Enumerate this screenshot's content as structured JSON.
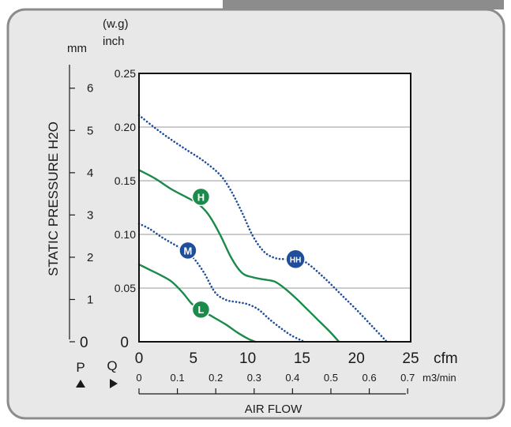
{
  "chart_data": {
    "type": "line",
    "xlabel": "AIR FLOW",
    "ylabel": "STATIC PRESSURE H2O",
    "x_unit": "cfm",
    "x_unit_secondary": "m3/min",
    "y_unit_top": "(w.g)",
    "y_unit": "inch",
    "y_unit_secondary": "mm",
    "xlim": [
      0,
      25
    ],
    "ylim": [
      0,
      0.25
    ],
    "x_ticks": [
      "0",
      "5",
      "10",
      "15",
      "20",
      "25"
    ],
    "x_ticks_secondary": [
      "0",
      "0.1",
      "0.2",
      "0.3",
      "0.4",
      "0.5",
      "0.6",
      "0.7"
    ],
    "y_ticks": [
      "0",
      "0.05",
      "0.10",
      "0.15",
      "0.20",
      "0.25"
    ],
    "y_ticks_secondary": [
      "0",
      "1",
      "2",
      "3",
      "4",
      "5",
      "6"
    ],
    "p_label": "P",
    "q_label": "Q",
    "grid": "horizontal",
    "series": [
      {
        "name": "HH",
        "style": "dotted",
        "color": "#1f4e9a",
        "x": [
          0,
          1.5,
          3,
          4.5,
          6,
          7.5,
          8.5,
          9.5,
          10.5,
          11.5,
          12.5,
          13.5,
          14.5,
          15.5,
          17,
          18.5,
          20,
          21.5,
          22.8
        ],
        "y": [
          0.211,
          0.199,
          0.188,
          0.178,
          0.168,
          0.155,
          0.14,
          0.12,
          0.098,
          0.084,
          0.078,
          0.077,
          0.077,
          0.073,
          0.06,
          0.045,
          0.03,
          0.014,
          0.0
        ]
      },
      {
        "name": "H",
        "style": "solid",
        "color": "#1b8a4a",
        "x": [
          0,
          1.5,
          3,
          4.5,
          5.5,
          6.5,
          7.5,
          8.5,
          9.5,
          10.5,
          11.5,
          12.5,
          13.5,
          14.5,
          15.5,
          16.5,
          17.5,
          18.4
        ],
        "y": [
          0.16,
          0.152,
          0.142,
          0.134,
          0.128,
          0.117,
          0.099,
          0.078,
          0.064,
          0.06,
          0.058,
          0.056,
          0.049,
          0.04,
          0.03,
          0.02,
          0.01,
          0.0
        ]
      },
      {
        "name": "M",
        "style": "dotted",
        "color": "#1f4e9a",
        "x": [
          0,
          1,
          2,
          3,
          4,
          5,
          6,
          7,
          8,
          9,
          10,
          11,
          12,
          13,
          14,
          15.2
        ],
        "y": [
          0.11,
          0.105,
          0.098,
          0.092,
          0.086,
          0.078,
          0.064,
          0.046,
          0.039,
          0.037,
          0.035,
          0.03,
          0.021,
          0.013,
          0.006,
          0.0
        ]
      },
      {
        "name": "L",
        "style": "solid",
        "color": "#1b8a4a",
        "x": [
          0,
          1,
          2,
          3,
          4,
          4.8,
          5.5,
          6.3,
          7,
          8,
          9,
          10,
          10.7
        ],
        "y": [
          0.072,
          0.067,
          0.062,
          0.056,
          0.046,
          0.036,
          0.03,
          0.026,
          0.022,
          0.016,
          0.009,
          0.003,
          0.0
        ]
      }
    ],
    "markers": [
      {
        "label": "HH",
        "x": 14.4,
        "y": 0.077,
        "color": "#1f4e9a"
      },
      {
        "label": "H",
        "x": 5.7,
        "y": 0.135,
        "color": "#1b8a4a"
      },
      {
        "label": "M",
        "x": 4.5,
        "y": 0.085,
        "color": "#1f4e9a"
      },
      {
        "label": "L",
        "x": 5.7,
        "y": 0.03,
        "color": "#1b8a4a"
      }
    ]
  },
  "colors": {
    "panel_bg": "#e8e8e8",
    "panel_border": "#8c8c8c",
    "plot_bg": "#ffffff",
    "gridline": "#9a9a9a",
    "blue": "#1f4e9a",
    "green": "#1b8a4a"
  },
  "icons": {
    "p_direction": "triangle-up-icon",
    "q_direction": "triangle-right-icon"
  }
}
